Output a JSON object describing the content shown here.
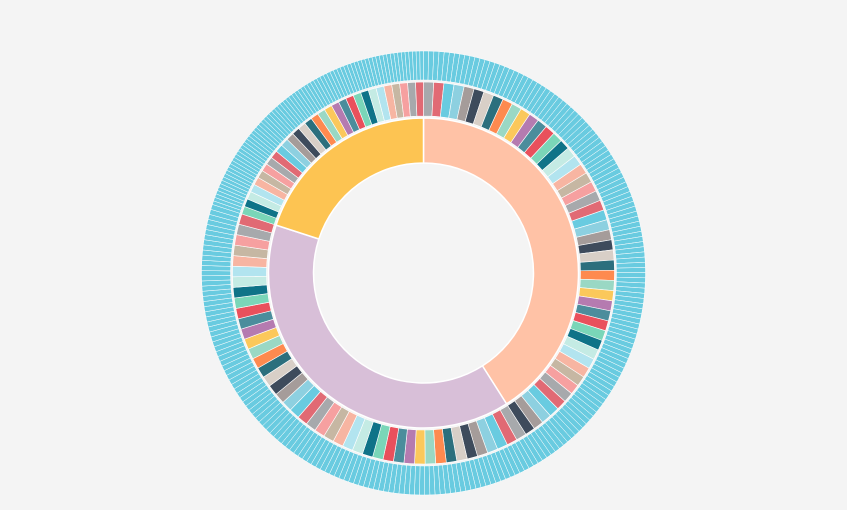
{
  "chart_data": {
    "type": "sunburst",
    "stroke_color": "#ffffff",
    "background": "#f4f4f4",
    "inner_ring": [
      {
        "value": 41,
        "color": "#ffc2a6"
      },
      {
        "value": 39,
        "color": "#d8bfd8"
      },
      {
        "value": 20,
        "color": "#fdc452"
      }
    ],
    "palette": [
      "#a7a9ac",
      "#c6b7a3",
      "#b2e4ef",
      "#0f7388",
      "#e9505c",
      "#b57bb0",
      "#9ad8c4",
      "#2c6f7d",
      "#3e4b5c",
      "#8dd0e0",
      "#e16a74",
      "#f6a0a0",
      "#f7b5a2",
      "#c4ebe4",
      "#7ad6b8",
      "#4b8d9c",
      "#fbc85b",
      "#fe8a4f",
      "#d8cfc7",
      "#a59c9a",
      "#69cbe0"
    ],
    "outer_color": "#69cbe0",
    "middle_ring": [
      {
        "parent": 0,
        "count": 48
      },
      {
        "parent": 1,
        "count": 44
      },
      {
        "parent": 2,
        "count": 30
      }
    ],
    "outer_ring": [
      {
        "parent": 0,
        "count": 110
      },
      {
        "parent": 1,
        "count": 105
      },
      {
        "parent": 2,
        "count": 75
      }
    ]
  }
}
